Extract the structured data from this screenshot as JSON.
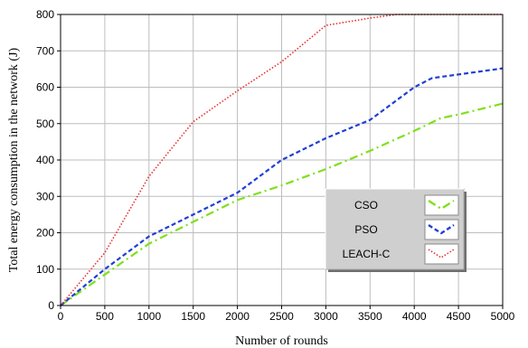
{
  "chart_data": {
    "type": "line",
    "xlabel": "Number of rounds",
    "ylabel": "Total energy consumption in the network (J)",
    "xlim": [
      0,
      5000
    ],
    "ylim": [
      0,
      800
    ],
    "xticks": [
      "0",
      "500",
      "1000",
      "1500",
      "2000",
      "2500",
      "3000",
      "3500",
      "4000",
      "4500",
      "5000"
    ],
    "yticks": [
      "0",
      "100",
      "200",
      "300",
      "400",
      "500",
      "600",
      "700",
      "800"
    ],
    "grid": true,
    "legend_position": "lower-right",
    "series": [
      {
        "name": "CSO",
        "color": "#7fe01e",
        "dash": "dash-dot",
        "x": [
          0,
          500,
          1000,
          1500,
          2000,
          2500,
          3000,
          3500,
          4000,
          4300,
          4500,
          5000
        ],
        "y": [
          0,
          85,
          170,
          230,
          290,
          330,
          375,
          425,
          480,
          515,
          525,
          555
        ]
      },
      {
        "name": "PSO",
        "color": "#1f3fd6",
        "dash": "dashed",
        "x": [
          0,
          500,
          1000,
          1500,
          2000,
          2500,
          3000,
          3500,
          4000,
          4200,
          4500,
          5000
        ],
        "y": [
          0,
          100,
          190,
          250,
          310,
          400,
          460,
          510,
          600,
          625,
          635,
          652
        ]
      },
      {
        "name": "LEACH-C",
        "color": "#e83030",
        "dash": "dotted",
        "x": [
          0,
          500,
          1000,
          1500,
          2000,
          2500,
          3000,
          3500,
          3800,
          4000,
          5000
        ],
        "y": [
          0,
          145,
          355,
          505,
          590,
          670,
          770,
          790,
          800,
          800,
          800
        ]
      }
    ]
  }
}
